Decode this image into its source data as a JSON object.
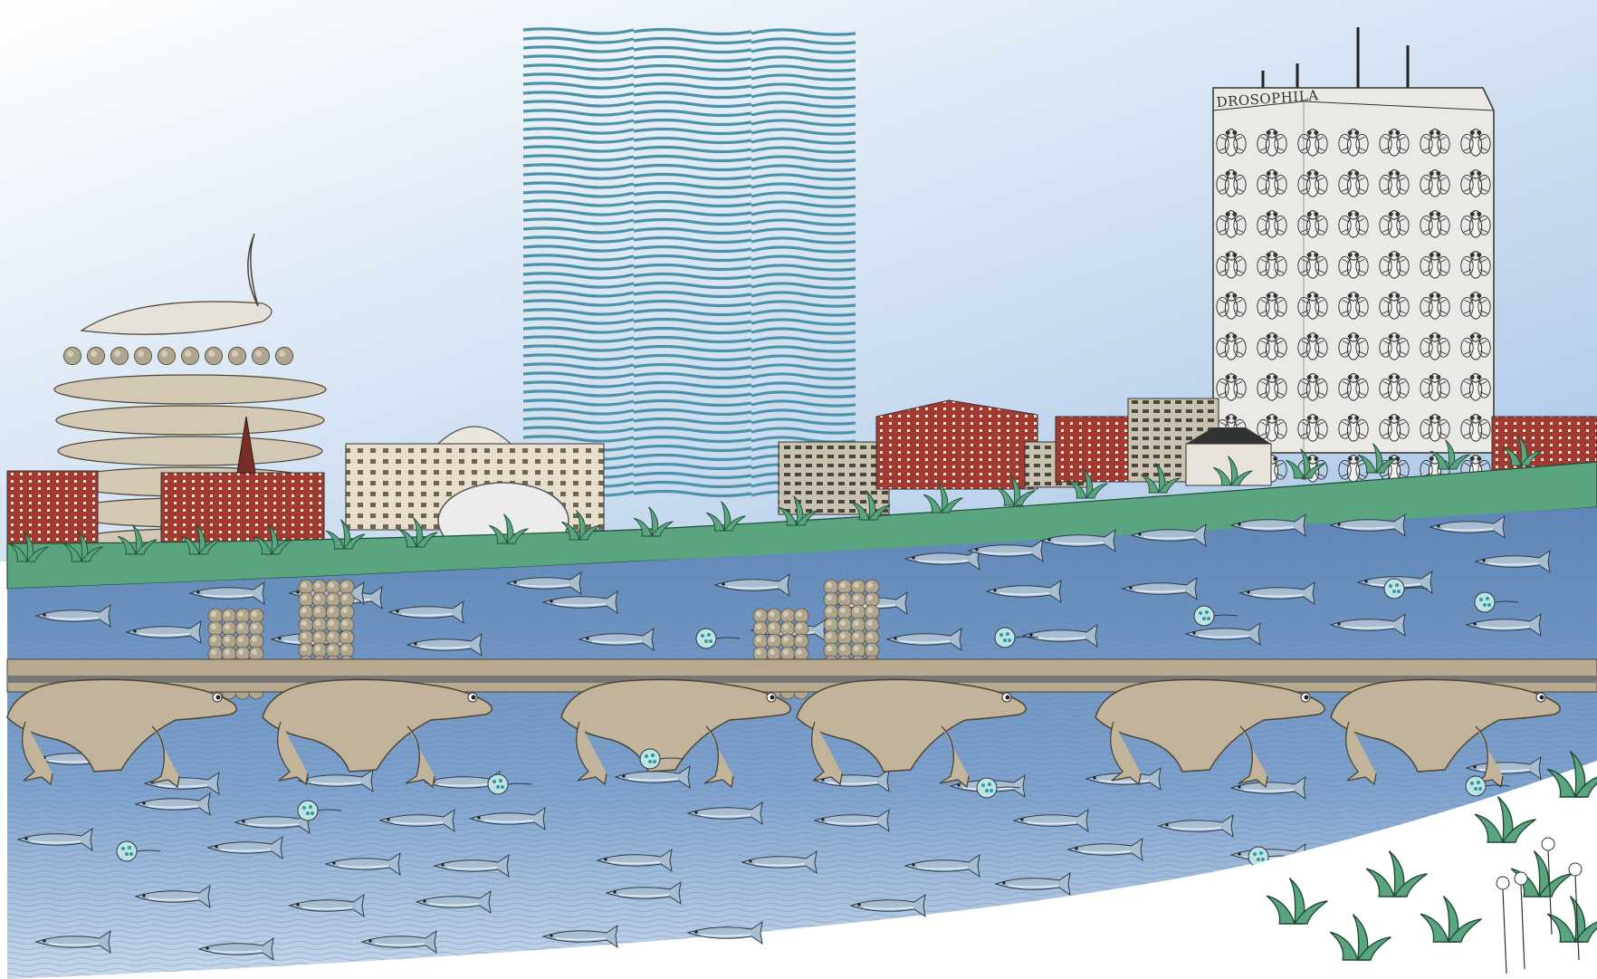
{
  "illustration": {
    "tower_sign": "DROSOPHILA"
  },
  "palette": {
    "sky_top": "#ffffff",
    "sky_bottom": "#a9c6e6",
    "river": "#6d93c0",
    "river_light": "#8fb0d6",
    "bank_green": "#5aa57f",
    "brick": "#a23a32",
    "wave_tower": "#4d93a8",
    "frog": "#c2b49a",
    "egg": "#b0a58e",
    "fish": "#a8bdd0",
    "snow": "#ffffff"
  }
}
